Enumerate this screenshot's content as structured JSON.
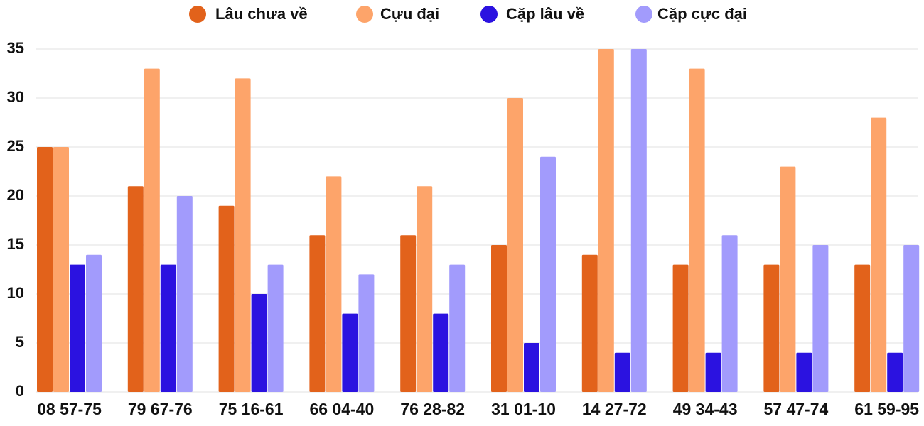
{
  "chart_data": {
    "type": "bar",
    "categories": [
      "08 57-75",
      "79 67-76",
      "75 16-61",
      "66 04-40",
      "76 28-82",
      "31 01-10",
      "14 27-72",
      "49 34-43",
      "57 47-74",
      "61 59-95"
    ],
    "series": [
      {
        "name": "Lâu chưa về",
        "color": "#e2621b",
        "values": [
          25,
          21,
          19,
          16,
          16,
          15,
          14,
          13,
          13,
          13
        ]
      },
      {
        "name": "Cựu đại",
        "color": "#fda46a",
        "values": [
          25,
          33,
          32,
          22,
          21,
          30,
          35,
          33,
          23,
          28
        ]
      },
      {
        "name": "Cặp lâu về",
        "color": "#2b12e0",
        "values": [
          13,
          13,
          10,
          8,
          8,
          5,
          4,
          4,
          4,
          4
        ]
      },
      {
        "name": "Cặp cực đại",
        "color": "#a29bfc",
        "values": [
          14,
          20,
          13,
          12,
          13,
          24,
          35,
          16,
          15,
          15
        ]
      }
    ],
    "ylim": [
      0,
      35
    ],
    "yticks": [
      0,
      5,
      10,
      15,
      20,
      25,
      30,
      35
    ],
    "grid": true,
    "legend": "top"
  }
}
